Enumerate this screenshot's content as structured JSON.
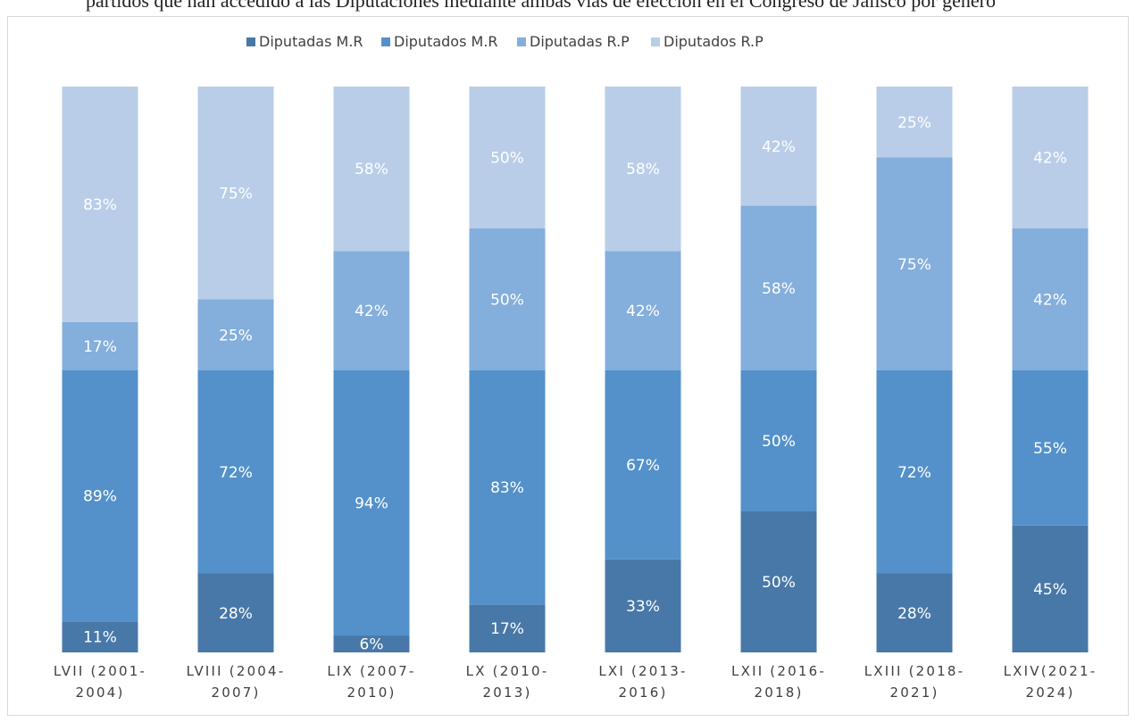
{
  "header": {
    "partial_text": "partidos que han accedido a las Diputaciones mediante ambas vías de elección en el Congreso de Jalisco por género"
  },
  "colors": {
    "diputadas_mr": "#4878A8",
    "diputados_mr": "#5491CA",
    "diputadas_rp": "#84AEDC",
    "diputados_rp": "#B9CDE8"
  },
  "chart_data": {
    "type": "bar",
    "stacked": true,
    "title": "",
    "xlabel": "",
    "ylabel": "",
    "legend_position": "top",
    "categories": [
      [
        "LVII (2001-",
        "2004)"
      ],
      [
        "LVIII (2004-",
        "2007)"
      ],
      [
        "LIX (2007-",
        "2010)"
      ],
      [
        "LX (2010-",
        "2013)"
      ],
      [
        "LXI (2013-",
        "2016)"
      ],
      [
        "LXII (2016-",
        "2018)"
      ],
      [
        "LXIII (2018-",
        "2021)"
      ],
      [
        "LXIV(2021-",
        "2024)"
      ]
    ],
    "series": [
      {
        "name": "Diputadas M.R",
        "color": "#4878A8",
        "values": [
          11,
          28,
          6,
          17,
          33,
          50,
          28,
          45
        ],
        "labels": [
          "11%",
          "28%",
          "6%",
          "17%",
          "33%",
          "50%",
          "28%",
          "45%"
        ]
      },
      {
        "name": "Diputados M.R",
        "color": "#5491CA",
        "values": [
          89,
          72,
          94,
          83,
          67,
          50,
          72,
          55
        ],
        "labels": [
          "89%",
          "72%",
          "94%",
          "83%",
          "67%",
          "50%",
          "72%",
          "55%"
        ]
      },
      {
        "name": "Diputadas R.P",
        "color": "#84AEDC",
        "values": [
          17,
          25,
          42,
          50,
          42,
          58,
          75,
          42
        ],
        "labels": [
          "17%",
          "25%",
          "42%",
          "50%",
          "42%",
          "58%",
          "75%",
          "42%"
        ]
      },
      {
        "name": "Diputados R.P",
        "color": "#B9CDE8",
        "values": [
          83,
          75,
          58,
          50,
          58,
          42,
          25,
          42
        ],
        "labels": [
          "83%",
          "75%",
          "58%",
          "50%",
          "58%",
          "42%",
          "25%",
          "42%"
        ]
      }
    ]
  }
}
